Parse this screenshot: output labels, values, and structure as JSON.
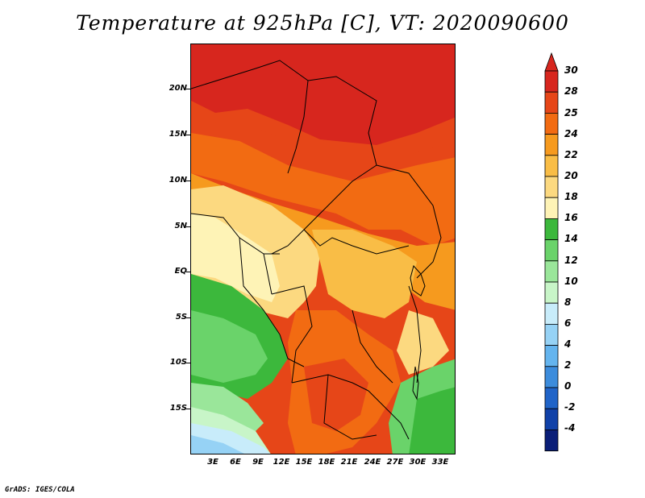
{
  "title": "Temperature at 925hPa [C], VT: 2020090600",
  "credit": "GrADS: IGES/COLA",
  "y_axis_labels": [
    "20N",
    "15N",
    "10N",
    "5N",
    "EQ",
    "5S",
    "10S",
    "15S"
  ],
  "x_axis_labels": [
    "3E",
    "6E",
    "9E",
    "12E",
    "15E",
    "18E",
    "21E",
    "24E",
    "27E",
    "30E",
    "33E"
  ],
  "colorbar": {
    "labels": [
      "30",
      "28",
      "25",
      "24",
      "22",
      "20",
      "18",
      "16",
      "14",
      "12",
      "10",
      "8",
      "6",
      "4",
      "2",
      "0",
      "-2",
      "-4"
    ],
    "colors": [
      "#d7261e",
      "#e64618",
      "#f26b12",
      "#f69a1e",
      "#f9bd46",
      "#fcd980",
      "#fef3b6",
      "#3cb83c",
      "#6ad36a",
      "#9ae69a",
      "#c8f5c8",
      "#c8ecfa",
      "#96d2f5",
      "#64b4ee",
      "#3c8cdc",
      "#2064c8",
      "#1041a8",
      "#0a1e78",
      "#000050",
      "#e6e6fa"
    ],
    "top_arrow_color": "#d7261e",
    "bottom_arrow_color": "#e6e6fa"
  },
  "field_colors": {
    "hot": "#d7261e",
    "warm1": "#e64618",
    "warm2": "#f26b12",
    "warm3": "#f69a1e",
    "warm4": "#f9bd46",
    "mild": "#fcd980",
    "cool": "#fef3b6",
    "green1": "#3cb83c",
    "green2": "#6ad36a",
    "green3": "#9ae69a",
    "pale": "#c8f5c8",
    "sky": "#c8ecfa",
    "blue": "#96d2f5"
  }
}
